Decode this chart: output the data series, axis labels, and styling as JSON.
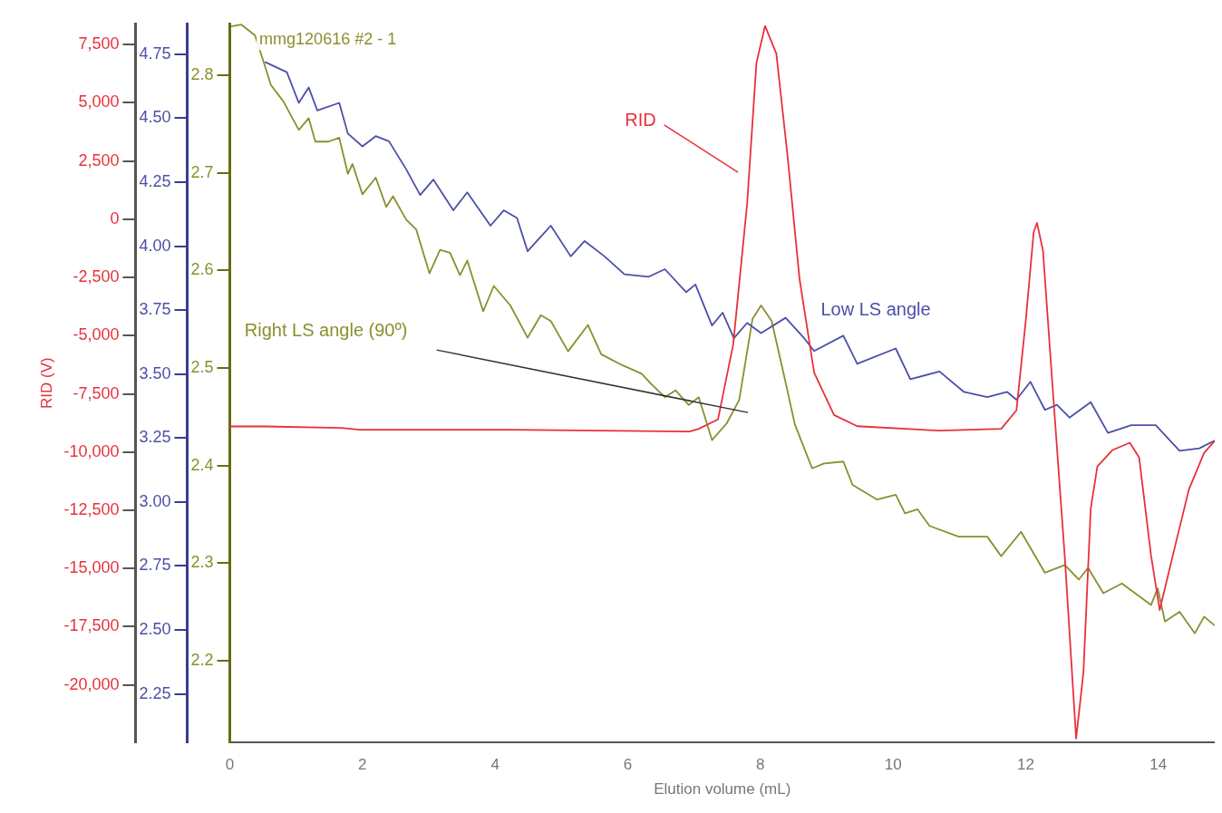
{
  "chart_data": {
    "type": "line",
    "xlabel": "Elution volume (mL)",
    "ylabel": "RID (V)",
    "annotations": [
      "mmg120616 #2 - 1"
    ],
    "xlim": [
      0,
      14.85
    ],
    "xticks": [
      0,
      2,
      4,
      6,
      8,
      10,
      12,
      14
    ],
    "ylim": [
      -22470,
      8400
    ],
    "yticks": [
      {
        "value": 7500,
        "label": "7,500"
      },
      {
        "value": 5000,
        "label": "5,000"
      },
      {
        "value": 2500,
        "label": "2,500"
      },
      0,
      {
        "value": -2500,
        "label": "-2,500"
      },
      {
        "value": -5000,
        "label": "-5,000"
      },
      {
        "value": -7500,
        "label": "-7,500"
      },
      {
        "value": -10000,
        "label": "-10,000"
      },
      {
        "value": -12500,
        "label": "-12,500"
      },
      {
        "value": -15000,
        "label": "-15,000"
      },
      {
        "value": -17500,
        "label": "-17,500"
      },
      {
        "value": -20000,
        "label": "-20,000"
      }
    ],
    "y2lim": [
      2.06,
      4.87
    ],
    "y2ticks": [
      4.75,
      {
        "value": 4.5,
        "label": "4.50"
      },
      4.25,
      {
        "value": 4,
        "label": "4.00"
      },
      3.75,
      {
        "value": 3.5,
        "label": "3.50"
      },
      3.25,
      {
        "value": 3,
        "label": "3.00"
      },
      2.75,
      {
        "value": 2.5,
        "label": "2.50"
      },
      2.25
    ],
    "y3lim": [
      2.116,
      2.853
    ],
    "y3ticks": [
      2.8,
      2.7,
      2.6,
      2.5,
      2.4,
      2.3,
      2.2
    ],
    "series": [
      {
        "name": "RID",
        "color": "#e8313a",
        "axis": "y",
        "x": [
          0,
          0.54,
          1.68,
          1.96,
          4.23,
          6.93,
          7.07,
          7.36,
          7.59,
          7.8,
          7.94,
          8.07,
          8.24,
          8.41,
          8.59,
          8.81,
          9.11,
          9.46,
          10.7,
          11.63,
          11.86,
          12,
          12.12,
          12.17,
          12.26,
          12.4,
          12.59,
          12.76,
          12.87,
          12.98,
          13.08,
          13.31,
          13.57,
          13.71,
          13.89,
          14.02,
          14.25,
          14.46,
          14.69,
          14.85
        ],
        "values": [
          -8900,
          -8900,
          -8960,
          -9040,
          -9040,
          -9120,
          -9000,
          -8600,
          -5370,
          670,
          6710,
          8300,
          7110,
          2690,
          -2570,
          -6590,
          -8410,
          -8890,
          -9080,
          -9000,
          -8210,
          -4380,
          -550,
          -160,
          -1340,
          -6990,
          -14530,
          -22300,
          -19470,
          -12440,
          -10620,
          -9910,
          -9600,
          -10230,
          -14450,
          -16780,
          -14060,
          -11610,
          -10030,
          -9520
        ]
      },
      {
        "name": "Low LS angle",
        "color": "#4b4fa8",
        "axis": "y2",
        "x": [
          0.53,
          0.86,
          1.04,
          1.19,
          1.32,
          1.65,
          1.78,
          2,
          2.2,
          2.4,
          2.66,
          2.87,
          3.07,
          3.37,
          3.58,
          3.93,
          4.13,
          4.33,
          4.49,
          4.84,
          5.14,
          5.35,
          5.65,
          5.95,
          6.31,
          6.56,
          6.88,
          7.02,
          7.27,
          7.43,
          7.6,
          7.8,
          8.01,
          8.38,
          8.66,
          8.81,
          9.25,
          9.46,
          10.04,
          10.26,
          10.7,
          11.07,
          11.42,
          11.72,
          11.86,
          12.07,
          12.29,
          12.47,
          12.66,
          12.98,
          13.24,
          13.59,
          13.96,
          14.32,
          14.62,
          14.85
        ],
        "values": [
          4.72,
          4.68,
          4.56,
          4.62,
          4.53,
          4.56,
          4.44,
          4.39,
          4.43,
          4.41,
          4.3,
          4.2,
          4.26,
          4.14,
          4.21,
          4.08,
          4.14,
          4.11,
          3.98,
          4.08,
          3.96,
          4.02,
          3.96,
          3.89,
          3.88,
          3.91,
          3.82,
          3.85,
          3.69,
          3.74,
          3.64,
          3.7,
          3.66,
          3.72,
          3.64,
          3.59,
          3.65,
          3.54,
          3.6,
          3.48,
          3.51,
          3.43,
          3.41,
          3.43,
          3.4,
          3.47,
          3.36,
          3.38,
          3.33,
          3.39,
          3.27,
          3.3,
          3.3,
          3.2,
          3.21,
          3.24
        ]
      },
      {
        "name": "Right LS angle (90º)",
        "color": "#8a8f2e",
        "axis": "y3",
        "x": [
          0.02,
          0.17,
          0.38,
          0.48,
          0.62,
          0.81,
          1.04,
          1.19,
          1.29,
          1.49,
          1.65,
          1.78,
          1.85,
          2,
          2.2,
          2.36,
          2.46,
          2.66,
          2.81,
          3.01,
          3.17,
          3.32,
          3.47,
          3.58,
          3.82,
          3.98,
          4.23,
          4.49,
          4.69,
          4.84,
          5.1,
          5.4,
          5.6,
          5.91,
          6.21,
          6.36,
          6.56,
          6.72,
          6.92,
          7.07,
          7.27,
          7.49,
          7.68,
          7.88,
          8.01,
          8.17,
          8.38,
          8.52,
          8.78,
          8.96,
          9.25,
          9.39,
          9.76,
          10.04,
          10.18,
          10.37,
          10.55,
          10.99,
          11.42,
          11.63,
          11.93,
          12.29,
          12.59,
          12.8,
          12.94,
          13.17,
          13.45,
          13.89,
          13.99,
          14.1,
          14.32,
          14.55,
          14.69,
          14.85
        ],
        "values": [
          2.85,
          2.852,
          2.841,
          2.82,
          2.79,
          2.773,
          2.744,
          2.756,
          2.732,
          2.732,
          2.736,
          2.699,
          2.709,
          2.678,
          2.695,
          2.665,
          2.676,
          2.652,
          2.642,
          2.597,
          2.621,
          2.618,
          2.595,
          2.61,
          2.558,
          2.584,
          2.564,
          2.531,
          2.554,
          2.548,
          2.517,
          2.544,
          2.514,
          2.503,
          2.494,
          2.483,
          2.47,
          2.477,
          2.462,
          2.47,
          2.426,
          2.443,
          2.467,
          2.55,
          2.564,
          2.548,
          2.485,
          2.442,
          2.397,
          2.402,
          2.404,
          2.38,
          2.365,
          2.37,
          2.351,
          2.355,
          2.338,
          2.327,
          2.327,
          2.307,
          2.332,
          2.29,
          2.298,
          2.283,
          2.295,
          2.269,
          2.279,
          2.257,
          2.274,
          2.24,
          2.25,
          2.228,
          2.245,
          2.236
        ]
      }
    ]
  }
}
